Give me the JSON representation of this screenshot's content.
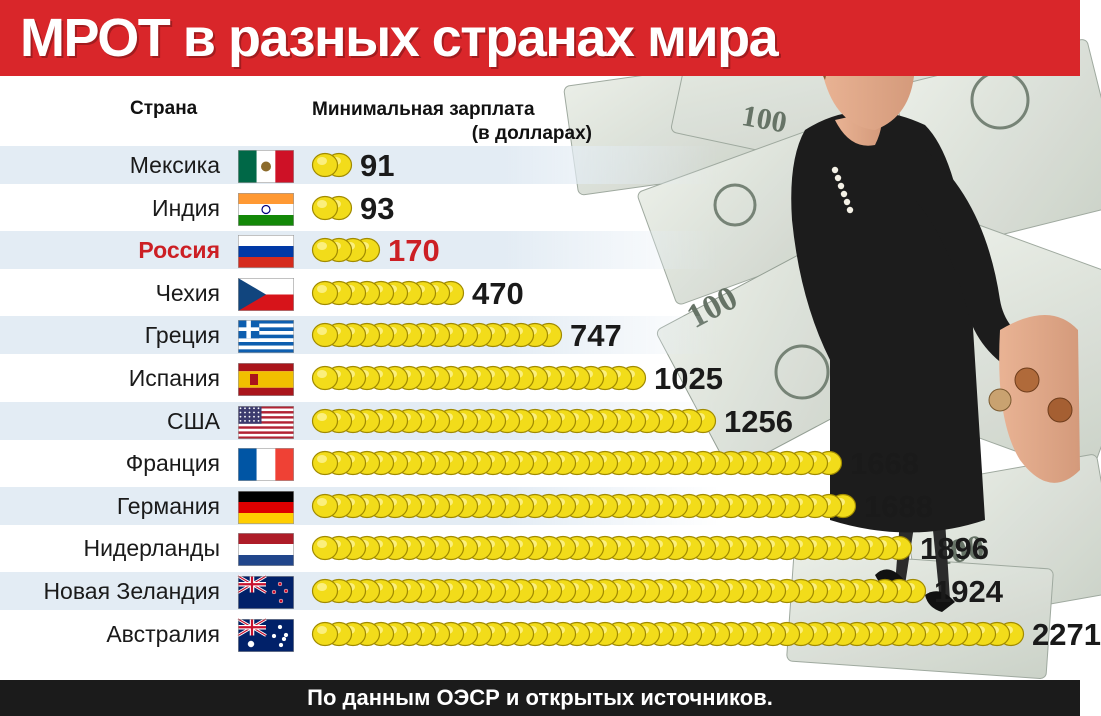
{
  "title": "МРОТ в разных странах мира",
  "columns": {
    "country": "Страна",
    "wage_line1": "Минимальная зарплата",
    "wage_line2": "(в долларах)"
  },
  "source": "По данным ОЭСР и открытых источников.",
  "colors": {
    "header_red": "#d9262a",
    "highlight_red": "#cc1f24",
    "coin_fill": "#f2dc1a",
    "coin_edge": "#a08a00",
    "band_light": "#e3ecf4",
    "footer": "#1b1b1b"
  },
  "chart_data": {
    "type": "bar",
    "categories": [
      "Мексика",
      "Индия",
      "Россия",
      "Чехия",
      "Греция",
      "Испания",
      "США",
      "Франция",
      "Германия",
      "Нидерланды",
      "Новая Зеландия",
      "Австралия"
    ],
    "values": [
      91,
      93,
      170,
      470,
      747,
      1025,
      1256,
      1668,
      1688,
      1896,
      1924,
      2271
    ],
    "value_labels": [
      "91",
      "93",
      "170",
      "470",
      "747",
      "1025",
      "1256",
      "1668",
      "1688",
      "1896",
      "1924",
      "2271"
    ],
    "flags": [
      "mexico-flag",
      "india-flag",
      "russia-flag",
      "czech-flag",
      "greece-flag",
      "spain-flag",
      "usa-flag",
      "france-flag",
      "germany-flag",
      "netherlands-flag",
      "new-zealand-flag",
      "australia-flag"
    ],
    "highlight": "Россия",
    "mark": "coin-stack",
    "xlabel": "Страна",
    "ylabel": "Минимальная зарплата (в долларах)"
  }
}
